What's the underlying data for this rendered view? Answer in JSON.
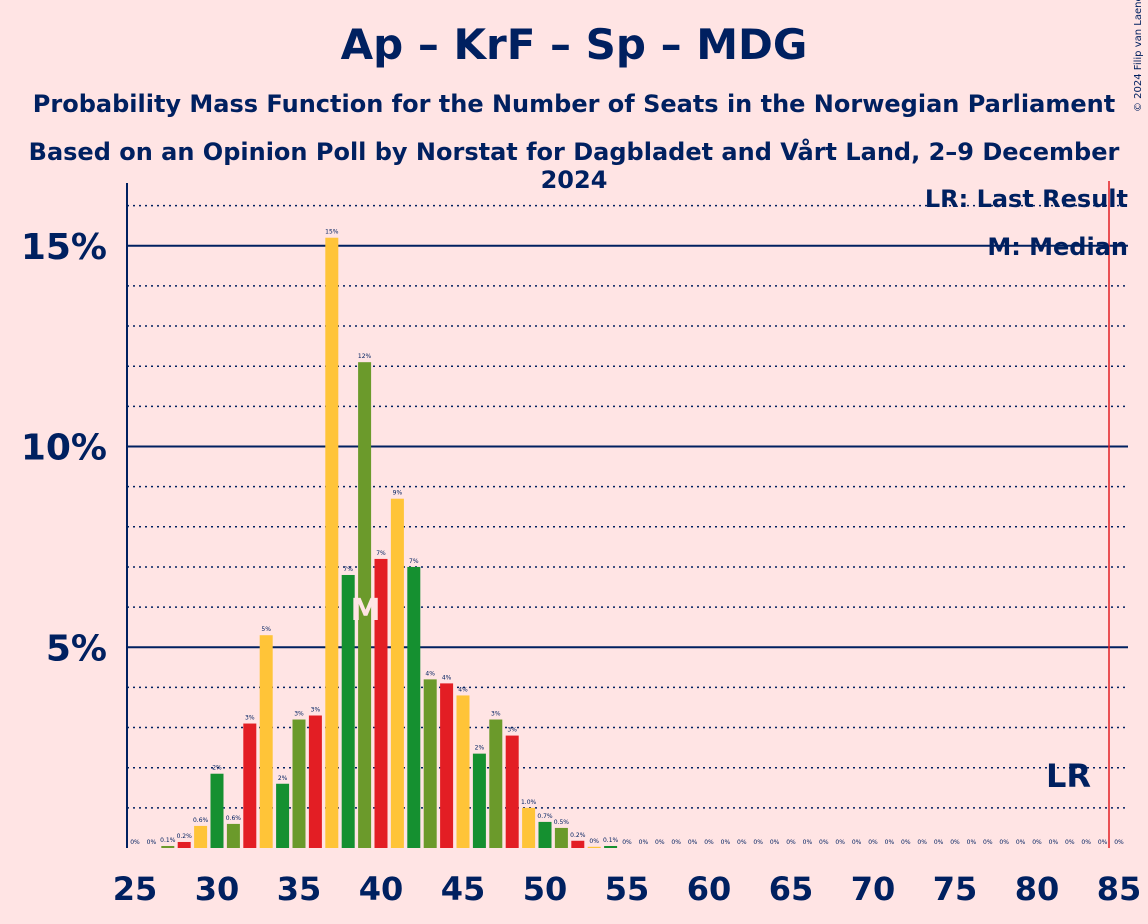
{
  "header": {
    "title": "Ap – KrF – Sp – MDG",
    "subtitle1": "Probability Mass Function for the Number of Seats in the Norwegian Parliament",
    "subtitle2": "Based on an Opinion Poll by Norstat for Dagbladet and Vårt Land, 2–9 December 2024",
    "credit": "© 2024 Filip van Laenen"
  },
  "legend": {
    "last_result": "LR: Last Result",
    "median": "M: Median"
  },
  "colors": {
    "background": "#FFE4E4",
    "axis": "#002060",
    "last_result_line": "#E31E24",
    "median_marker": "#FFE4E4",
    "bar_cycle": [
      "#E31E24",
      "#FFC438",
      "#159030",
      "#6B9A2B"
    ]
  },
  "chart_data": {
    "type": "bar",
    "title": "Ap – KrF – Sp – MDG",
    "xlabel": "",
    "ylabel": "",
    "ylim": [
      0,
      16.5
    ],
    "xlim": [
      25,
      85
    ],
    "x_ticks": [
      25,
      30,
      35,
      40,
      45,
      50,
      55,
      60,
      65,
      70,
      75,
      80,
      85
    ],
    "y_major_ticks": [
      5,
      10,
      15
    ],
    "y_tick_labels": [
      "5%",
      "10%",
      "15%"
    ],
    "y_minor_step": 1,
    "grid": true,
    "legend_position": "top-right",
    "median": 39,
    "median_label": "M",
    "last_result": 85,
    "last_result_label": "LR",
    "x": [
      25,
      26,
      27,
      28,
      29,
      30,
      31,
      32,
      33,
      34,
      35,
      36,
      37,
      38,
      39,
      40,
      41,
      42,
      43,
      44,
      45,
      46,
      47,
      48,
      49,
      50,
      51,
      52,
      53,
      54,
      55,
      56,
      57,
      58,
      59,
      60,
      61,
      62,
      63,
      64,
      65,
      66,
      67,
      68,
      69,
      70,
      71,
      72,
      73,
      74,
      75,
      76,
      77,
      78,
      79,
      80,
      81,
      82,
      83,
      84,
      85
    ],
    "values": [
      0,
      0,
      0.05,
      0.15,
      0.55,
      1.85,
      0.6,
      3.1,
      5.3,
      1.6,
      3.2,
      3.3,
      15.2,
      6.8,
      12.1,
      7.2,
      8.7,
      7.0,
      4.2,
      4.1,
      3.8,
      2.35,
      3.2,
      2.8,
      1.0,
      0.65,
      0.5,
      0.18,
      0.03,
      0.05,
      0,
      0,
      0,
      0,
      0,
      0,
      0,
      0,
      0,
      0,
      0,
      0,
      0,
      0,
      0,
      0,
      0,
      0,
      0,
      0,
      0,
      0,
      0,
      0,
      0,
      0,
      0,
      0,
      0,
      0,
      0
    ],
    "data_labels": [
      "0%",
      "0%",
      "0.1%",
      "0.2%",
      "0.6%",
      "2%",
      "0.6%",
      "3%",
      "5%",
      "2%",
      "3%",
      "3%",
      "15%",
      "7%",
      "12%",
      "7%",
      "9%",
      "7%",
      "4%",
      "4%",
      "4%",
      "2%",
      "3%",
      "3%",
      "1.0%",
      "0.7%",
      "0.5%",
      "0.2%",
      "0%",
      "0.1%",
      "0%",
      "0%",
      "0%",
      "0%",
      "0%",
      "0%",
      "0%",
      "0%",
      "0%",
      "0%",
      "0%",
      "0%",
      "0%",
      "0%",
      "0%",
      "0%",
      "0%",
      "0%",
      "0%",
      "0%",
      "0%",
      "0%",
      "0%",
      "0%",
      "0%",
      "0%",
      "0%",
      "0%",
      "0%",
      "0%",
      "0%"
    ]
  }
}
